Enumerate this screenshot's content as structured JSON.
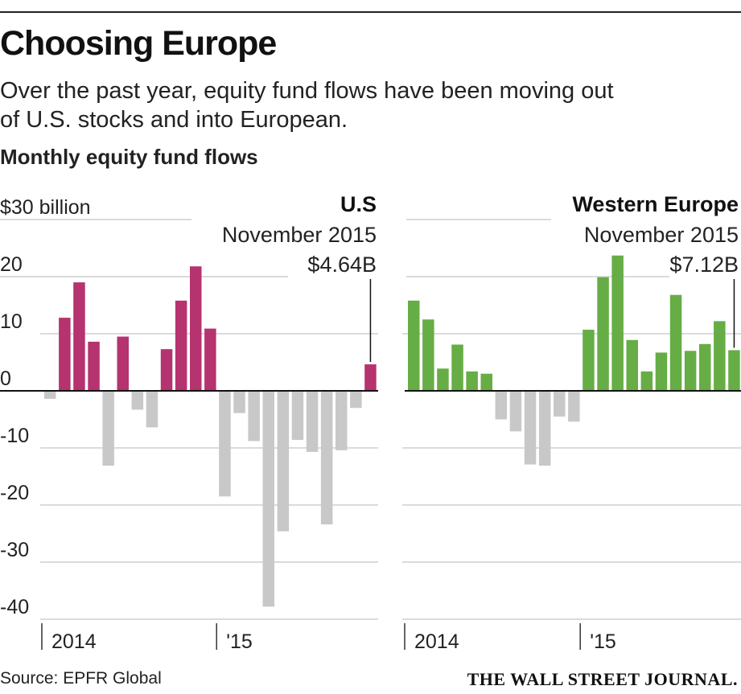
{
  "header": {
    "title": "Choosing Europe",
    "subtitle": "Over the past year, equity fund flows have been moving out of U.S. stocks and into European.",
    "chart_label": "Monthly equity fund flows"
  },
  "footer": {
    "source": "Source: EPFR Global",
    "publisher": "THE WALL STREET JOURNAL."
  },
  "colors": {
    "us_positive": "#B5336F",
    "europe_positive": "#66AD45",
    "negative": "#C8C8C8",
    "gridline": "#CFCFCF",
    "zero_line": "#111111"
  },
  "chart_data": [
    {
      "type": "bar",
      "title": "U.S",
      "annotation": {
        "lines": [
          "November 2015",
          "$4.64B"
        ],
        "value": 4.64
      },
      "ylabel": "",
      "ylim": [
        -42,
        32
      ],
      "y_ticks": [
        30,
        20,
        10,
        0,
        -10,
        -20,
        -30,
        -40
      ],
      "y_tick_labels": [
        "$30 billion",
        "20",
        "10",
        "0",
        "-10",
        "-20",
        "-30",
        "-40"
      ],
      "x_tick_labels": [
        "2014",
        "'15"
      ],
      "x_tick_indices": [
        0,
        12
      ],
      "grid": true,
      "values": [
        -1.4,
        12.8,
        19.0,
        8.6,
        -13.1,
        9.5,
        -3.3,
        -6.4,
        7.3,
        15.8,
        21.8,
        10.9,
        -18.5,
        -3.9,
        -8.8,
        -37.8,
        -24.6,
        -8.6,
        -10.7,
        -23.4,
        -10.4,
        -3.0,
        4.64
      ]
    },
    {
      "type": "bar",
      "title": "Western Europe",
      "annotation": {
        "lines": [
          "November 2015",
          "$7.12B"
        ],
        "value": 7.12
      },
      "ylabel": "",
      "ylim": [
        -42,
        32
      ],
      "y_ticks": [
        30,
        20,
        10,
        0,
        -10,
        -20,
        -30,
        -40
      ],
      "x_tick_labels": [
        "2014",
        "'15"
      ],
      "x_tick_indices": [
        0,
        12
      ],
      "grid": true,
      "values": [
        15.8,
        12.5,
        3.9,
        8.1,
        3.4,
        3.0,
        -5.0,
        -7.1,
        -12.9,
        -13.1,
        -4.5,
        -5.4,
        10.7,
        19.9,
        23.7,
        8.9,
        3.4,
        6.7,
        16.8,
        7.0,
        8.2,
        12.2,
        7.12
      ]
    }
  ]
}
